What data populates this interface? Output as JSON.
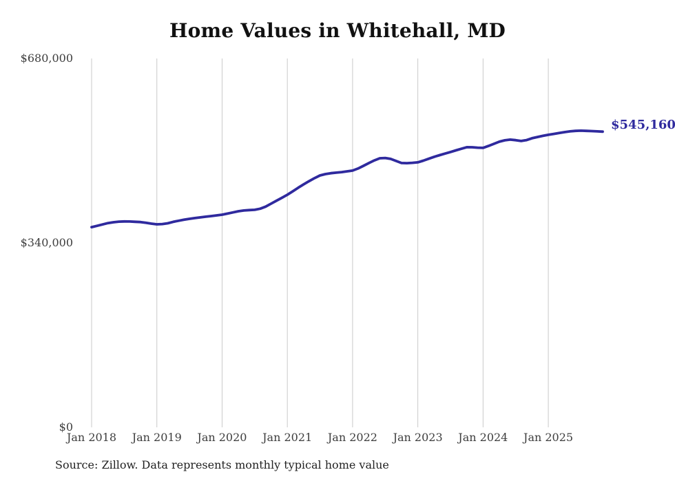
{
  "title": "Home Values in Whitehall, MD",
  "source_note": "Source: Zillow. Data represents monthly typical home value",
  "end_label": "$545,160",
  "colors": {
    "line": "#2f2a9e",
    "grid": "#c9c9c9",
    "title_text": "#111111",
    "axis_text": "#3d3d3d",
    "source_text": "#222222",
    "background": "#ffffff"
  },
  "chart_data": {
    "type": "line",
    "title": "Home Values in Whitehall, MD",
    "xlabel": "",
    "ylabel": "",
    "ylim": [
      0,
      680000
    ],
    "grid": "vertical-only",
    "legend": "none",
    "x_frequency": "monthly",
    "x_start": "Jan 2018",
    "x_end": "Nov 2025",
    "x_tick_labels": [
      "Jan 2018",
      "Jan 2019",
      "Jan 2020",
      "Jan 2021",
      "Jan 2022",
      "Jan 2023",
      "Jan 2024",
      "Jan 2025"
    ],
    "y_ticks": [
      {
        "value": 680000,
        "label": "$680,000"
      },
      {
        "value": 340000,
        "label": "$340,000"
      },
      {
        "value": 0,
        "label": "$0"
      }
    ],
    "end_value": 545160,
    "series": [
      {
        "name": "Typical home value",
        "values": [
          369000,
          371500,
          374000,
          376500,
          378000,
          379200,
          379600,
          379400,
          379000,
          378400,
          377000,
          375500,
          374300,
          374800,
          376200,
          378800,
          380900,
          382800,
          384400,
          385800,
          387100,
          388300,
          389500,
          390700,
          392000,
          394100,
          396200,
          398300,
          399800,
          400500,
          401000,
          403100,
          406900,
          412300,
          417800,
          423200,
          428800,
          435200,
          441700,
          447900,
          453800,
          459400,
          464300,
          466900,
          468500,
          469500,
          470600,
          471900,
          473300,
          477100,
          482100,
          487300,
          492100,
          496100,
          496600,
          494900,
          491100,
          487300,
          487000,
          487700,
          488500,
          491600,
          495100,
          498700,
          501800,
          504700,
          507600,
          510600,
          513600,
          516500,
          516300,
          515600,
          515200,
          518700,
          522700,
          526600,
          529100,
          530400,
          529400,
          527900,
          529600,
          532900,
          535300,
          537400,
          539300,
          540900,
          542600,
          544300,
          545600,
          546500,
          546900,
          546600,
          546100,
          545700,
          545160
        ]
      }
    ]
  }
}
